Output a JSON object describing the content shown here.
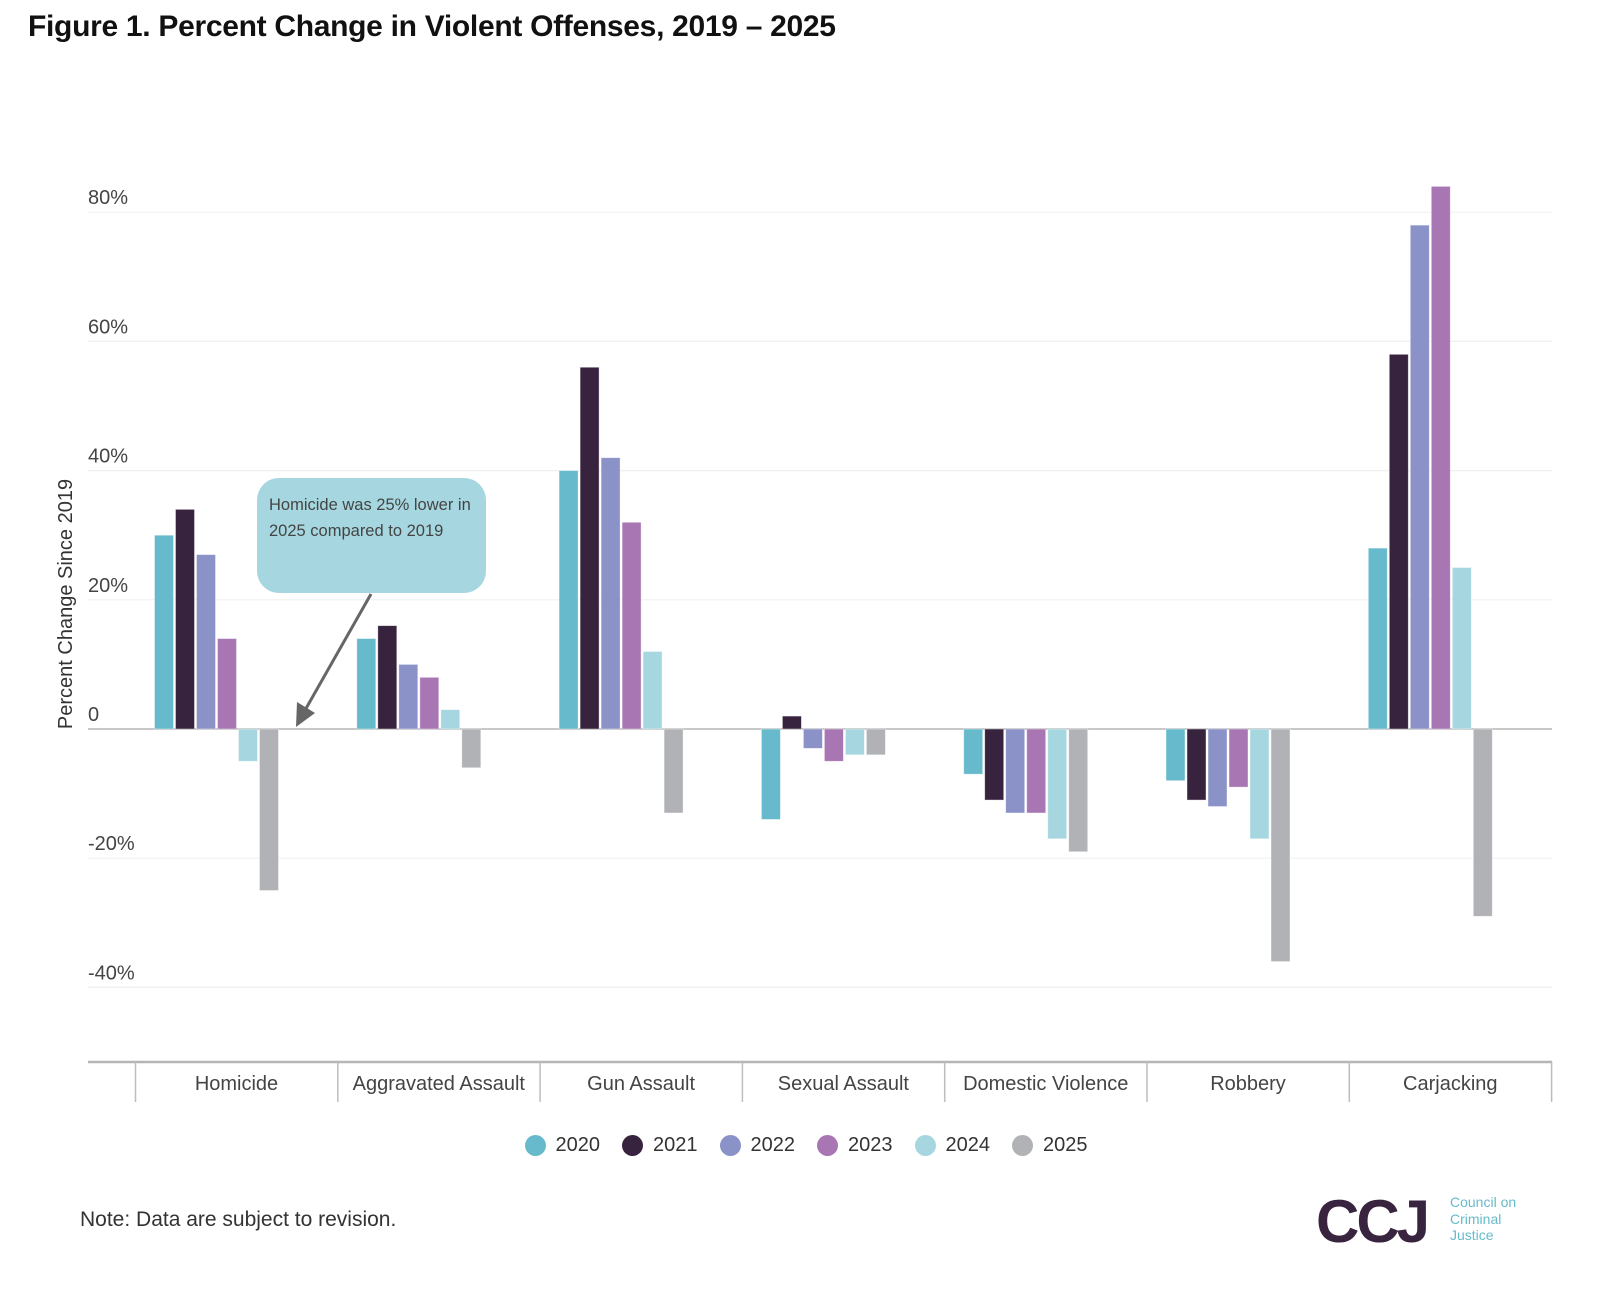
{
  "title": "Figure 1. Percent Change in Violent Offenses, 2019 – 2025",
  "note": "Note: Data are subject to revision.",
  "callout": {
    "text": "Homicide was 25% lower in 2025 compared to 2019",
    "target": {
      "category": "Homicide",
      "series": "2025"
    },
    "color": "#a6d7e0"
  },
  "logo": {
    "mark": "CCJ",
    "line1": "Council on",
    "line2": "Criminal",
    "line3": "Justice"
  },
  "chart_data": {
    "type": "bar",
    "title": "Figure 1. Percent Change in Violent Offenses, 2019 – 2025",
    "xlabel": "",
    "ylabel": "Percent Change Since 2019",
    "ylim": [
      -40,
      80
    ],
    "yticks": [
      80,
      60,
      40,
      20,
      0,
      -20,
      -40
    ],
    "ytick_labels": [
      "80%",
      "60%",
      "40%",
      "20%",
      "0",
      "-20%",
      "-40%"
    ],
    "grid": true,
    "legend_position": "bottom-center",
    "categories": [
      "Homicide",
      "Aggravated Assault",
      "Gun Assault",
      "Sexual Assault",
      "Domestic Violence",
      "Robbery",
      "Carjacking"
    ],
    "series": [
      {
        "name": "2020",
        "color": "#67bacb",
        "values": [
          30,
          14,
          40,
          -14,
          -7,
          -8,
          28
        ]
      },
      {
        "name": "2021",
        "color": "#38233f",
        "values": [
          34,
          16,
          56,
          2,
          -11,
          -11,
          58
        ]
      },
      {
        "name": "2022",
        "color": "#8a92c8",
        "values": [
          27,
          10,
          42,
          -3,
          -13,
          -12,
          78
        ]
      },
      {
        "name": "2023",
        "color": "#a976b4",
        "values": [
          14,
          8,
          32,
          -5,
          -13,
          -9,
          84
        ]
      },
      {
        "name": "2024",
        "color": "#a6d7e0",
        "values": [
          -5,
          3,
          12,
          -4,
          -17,
          -17,
          25
        ]
      },
      {
        "name": "2025",
        "color": "#b1b2b6",
        "values": [
          -25,
          -6,
          -13,
          -4,
          -19,
          -36,
          -29
        ]
      }
    ]
  }
}
